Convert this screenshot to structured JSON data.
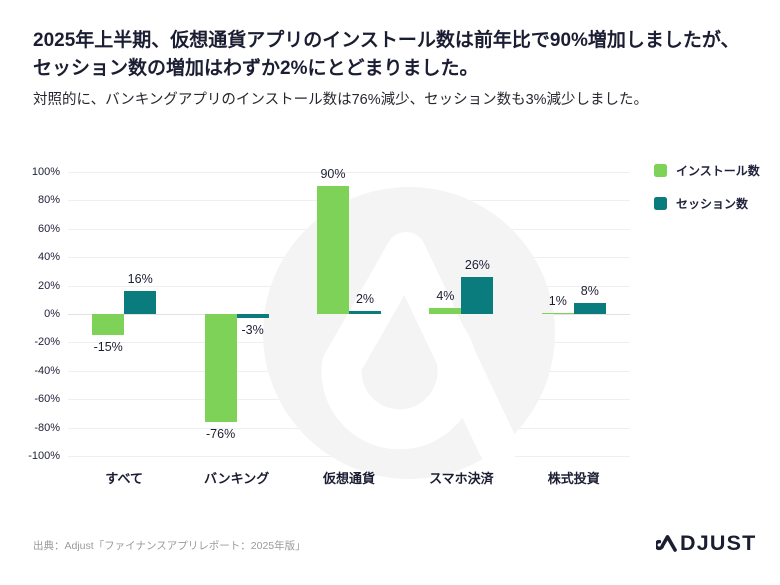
{
  "header": {
    "title_line1": "2025年上半期、仮想通貨アプリのインストール数は前年比で90%増加しましたが、",
    "title_line2": "セッション数の増加はわずか2%にとどまりました。",
    "subtitle": "対照的に、バンキングアプリのインストール数は76%減少、セッション数も3%減少しました。"
  },
  "chart_data": {
    "type": "bar",
    "categories": [
      "すべて",
      "バンキング",
      "仮想通貨",
      "スマホ決済",
      "株式投資"
    ],
    "series": [
      {
        "name": "インストール数",
        "color": "#7ed257",
        "values": [
          -15,
          -76,
          90,
          4,
          1
        ],
        "value_labels": [
          "-15%",
          "-76%",
          "90%",
          "4%",
          "1%"
        ]
      },
      {
        "name": "セッション数",
        "color": "#0b7c7e",
        "values": [
          16,
          -3,
          2,
          26,
          8
        ],
        "value_labels": [
          "16%",
          "-3%",
          "2%",
          "26%",
          "8%"
        ]
      }
    ],
    "ylim": [
      -100,
      100
    ],
    "ytick_step": 20,
    "ytick_labels": [
      "100%",
      "80%",
      "60%",
      "40%",
      "20%",
      "0%",
      "-20%",
      "-40%",
      "-60%",
      "-80%",
      "-100%"
    ],
    "grid": "horizontal",
    "legend_position": "top-right",
    "watermark": "adjust-logomark"
  },
  "footer": {
    "source": "出典：Adjust「ファイナンスアプリレポート：2025年版」",
    "logo_text": "ADJUST"
  },
  "colors": {
    "install_green": "#7ed257",
    "session_teal": "#0b7c7e",
    "text_dark": "#1b1e32",
    "watermark_gray": "#f4f4f5",
    "source_gray": "#9b9b9b"
  }
}
